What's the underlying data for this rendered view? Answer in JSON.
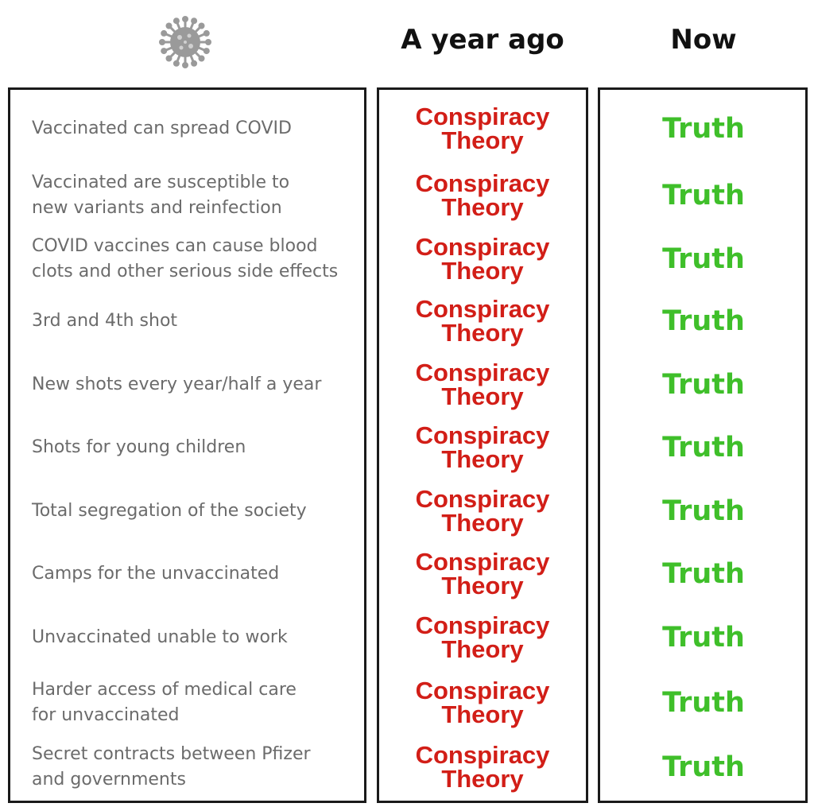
{
  "header": {
    "col2": "A year ago",
    "col3": "Now",
    "virus_icon": "coronavirus-icon"
  },
  "rows": [
    {
      "claim": "Vaccinated can spread COVID",
      "then": "Conspiracy\nTheory",
      "now": "Truth"
    },
    {
      "claim": "Vaccinated are susceptible to\nnew variants and reinfection",
      "then": "Conspiracy\nTheory",
      "now": "Truth"
    },
    {
      "claim": "COVID vaccines can cause blood\nclots and other serious side effects",
      "then": "Conspiracy\nTheory",
      "now": "Truth"
    },
    {
      "claim": "3rd and 4th shot",
      "then": "Conspiracy\nTheory",
      "now": "Truth"
    },
    {
      "claim": "New shots every year/half a year",
      "then": "Conspiracy\nTheory",
      "now": "Truth"
    },
    {
      "claim": "Shots for young children",
      "then": "Conspiracy\nTheory",
      "now": "Truth"
    },
    {
      "claim": "Total segregation of the society",
      "then": "Conspiracy\nTheory",
      "now": "Truth"
    },
    {
      "claim": "Camps for the unvaccinated",
      "then": "Conspiracy\nTheory",
      "now": "Truth"
    },
    {
      "claim": "Unvaccinated unable to work",
      "then": "Conspiracy\nTheory",
      "now": "Truth"
    },
    {
      "claim": "Harder access of medical care\nfor unvaccinated",
      "then": "Conspiracy\nTheory",
      "now": "Truth"
    },
    {
      "claim": "Secret contracts between Pfizer\nand governments",
      "then": "Conspiracy\nTheory",
      "now": "Truth"
    }
  ],
  "colors": {
    "then": "#d21e17",
    "now": "#3fbf2a",
    "claim": "#6b6b6b"
  }
}
